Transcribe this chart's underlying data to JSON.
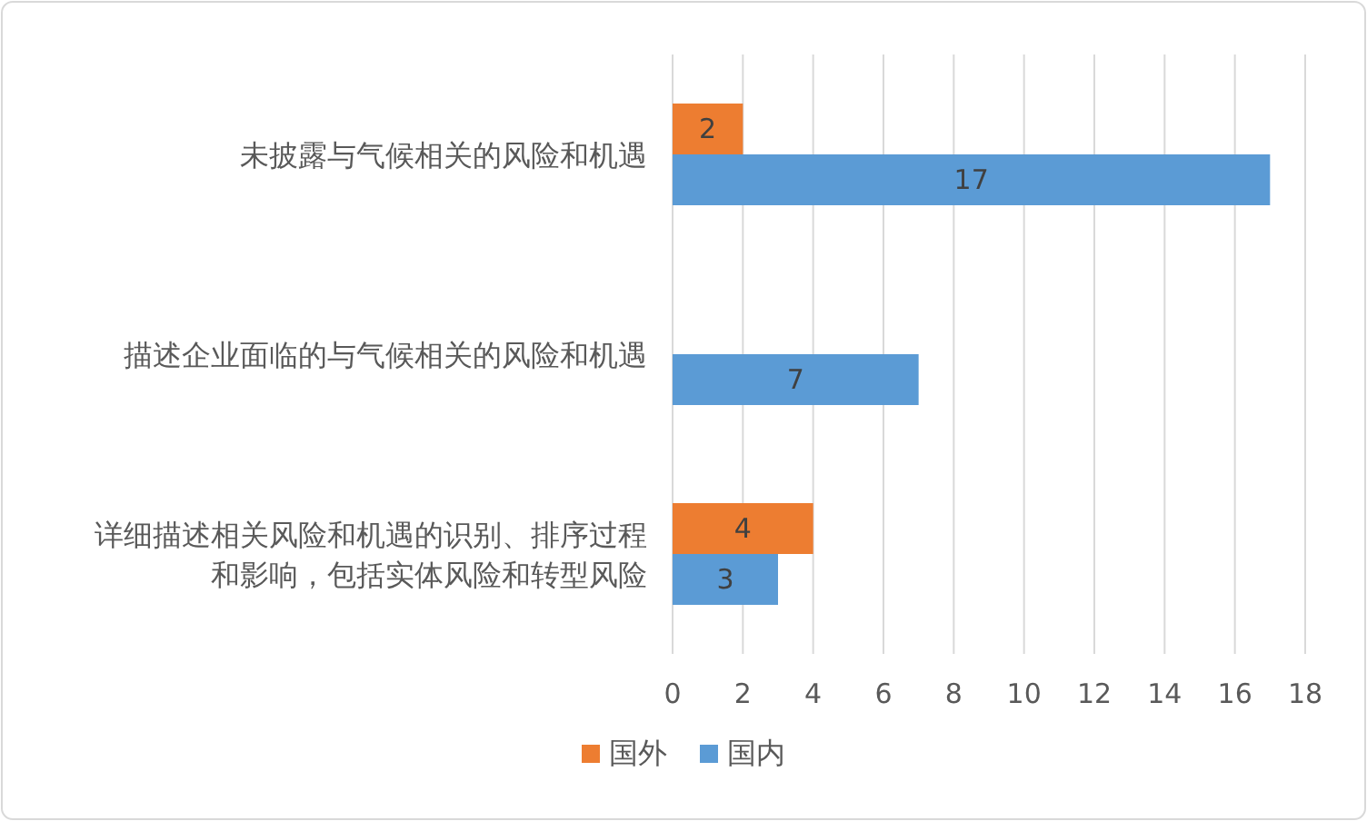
{
  "chart_data": {
    "type": "bar",
    "orientation": "horizontal",
    "categories": [
      "未披露与气候相关的风险和机遇",
      "描述企业面临的与气候相关的风险和机遇",
      "详细描述相关风险和机遇的识别、排序过程和影响，包括实体风险和转型风险"
    ],
    "series": [
      {
        "name": "国外",
        "color": "#ed7d31",
        "values": [
          2,
          null,
          4
        ]
      },
      {
        "name": "国内",
        "color": "#5b9bd5",
        "values": [
          17,
          7,
          3
        ]
      }
    ],
    "xlim": [
      0,
      18
    ],
    "xticks": [
      0,
      2,
      4,
      6,
      8,
      10,
      12,
      14,
      16,
      18
    ],
    "grid": "x",
    "legend": "bottom",
    "data_labels": true
  }
}
